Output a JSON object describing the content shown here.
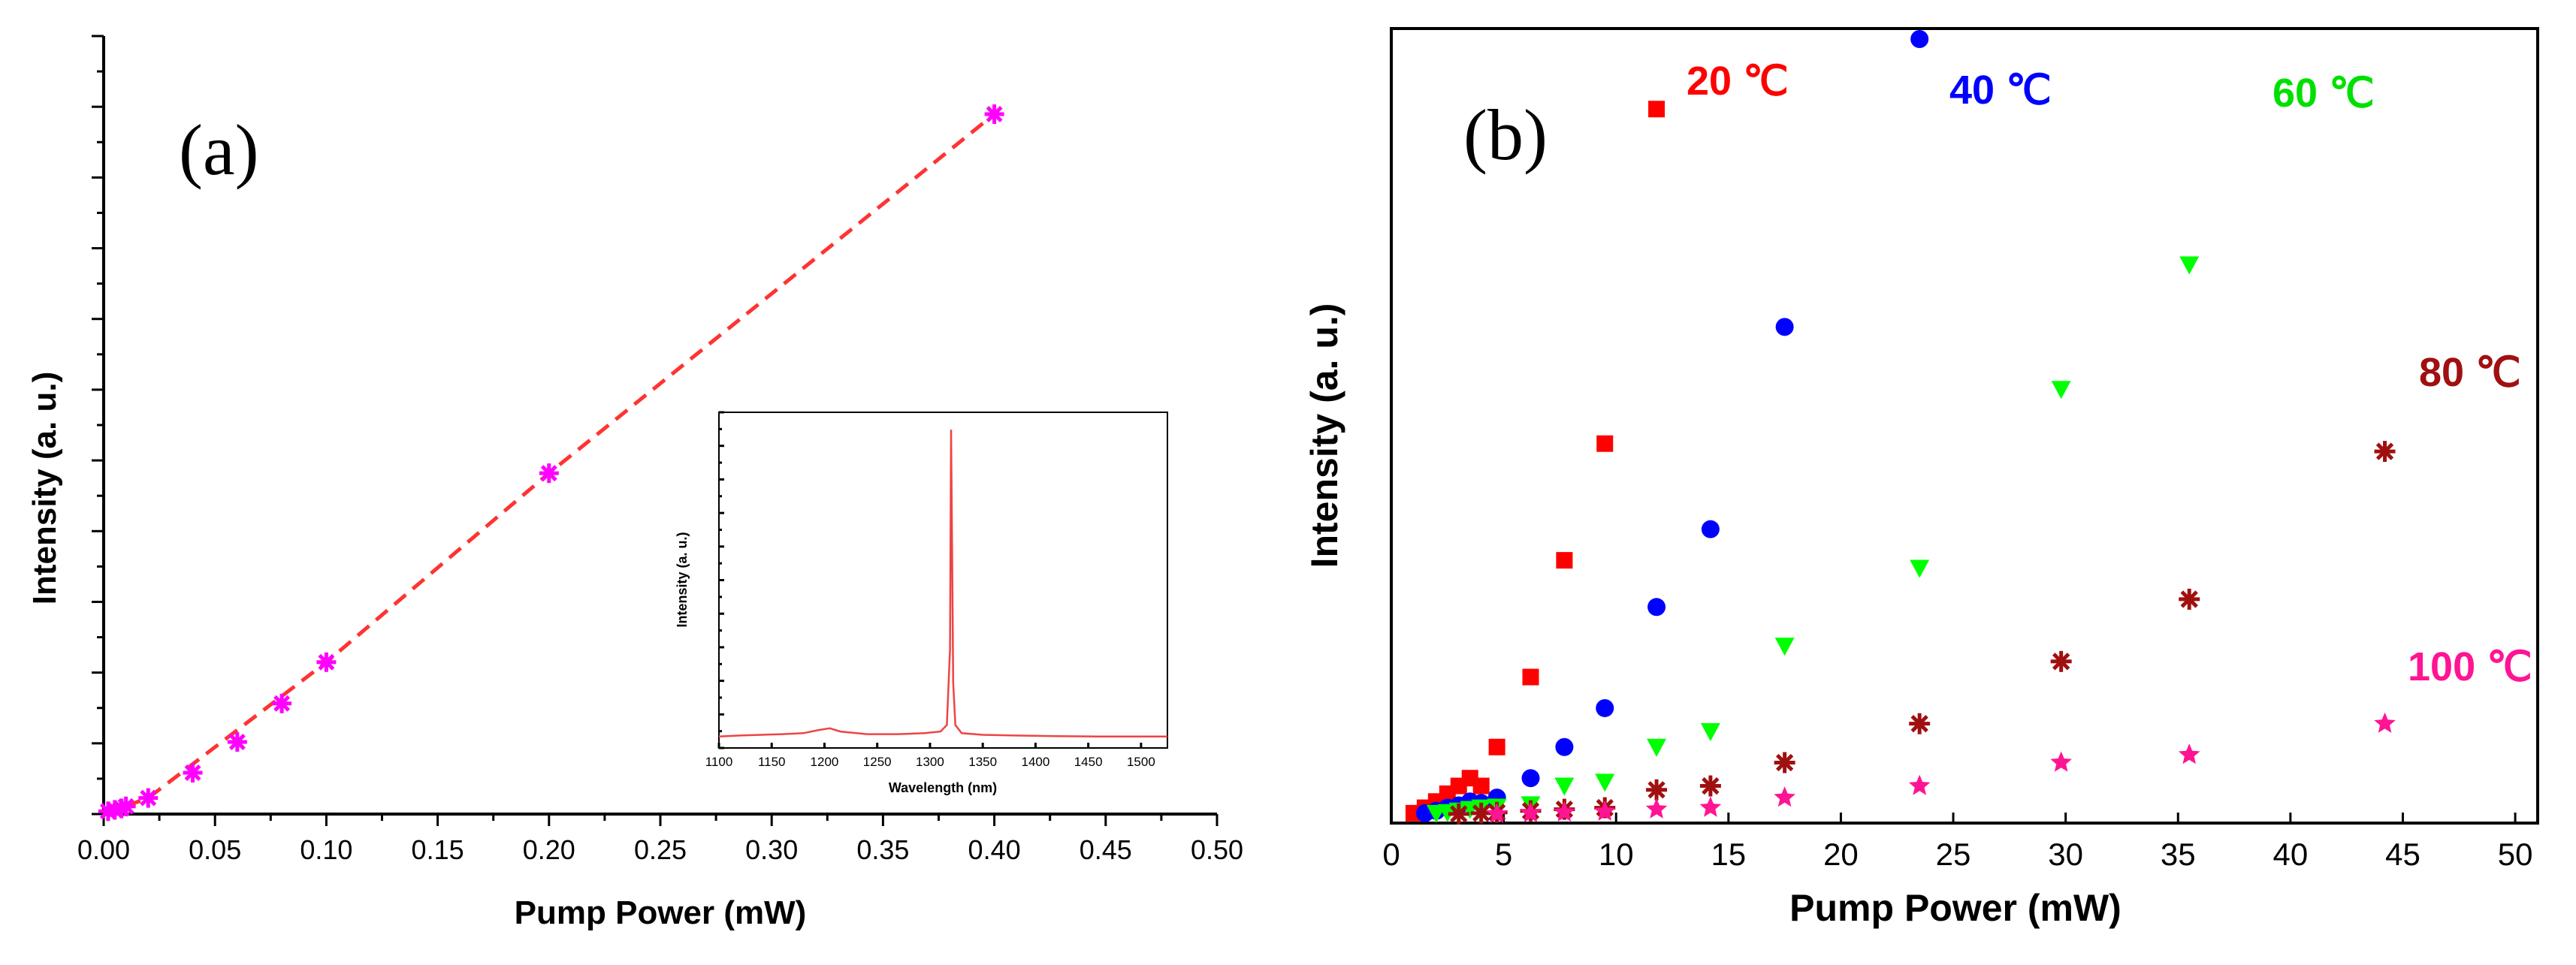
{
  "chart_data": [
    {
      "type": "scatter",
      "panel_label": "(a)",
      "title": "",
      "xlabel": "Pump Power (mW)",
      "ylabel": "Intensity (a. u.)",
      "xlim": [
        0,
        0.5
      ],
      "ylim": [
        0,
        1
      ],
      "x_ticks": [
        "0.00",
        "0.05",
        "0.10",
        "0.15",
        "0.20",
        "0.25",
        "0.30",
        "0.35",
        "0.40",
        "0.45",
        "0.50"
      ],
      "y_tick_labels_shown": false,
      "series": [
        {
          "name": "Intensity",
          "marker": "asterisk",
          "color": "#ff00ff",
          "x": [
            0.002,
            0.005,
            0.008,
            0.01,
            0.02,
            0.04,
            0.06,
            0.08,
            0.1,
            0.2,
            0.4
          ],
          "y": [
            0.004,
            0.006,
            0.008,
            0.011,
            0.023,
            0.059,
            0.103,
            0.158,
            0.217,
            0.487,
            1.0
          ]
        }
      ],
      "fit_line": {
        "style": "dashed",
        "color": "#ff3333",
        "x": [
          0.0,
          0.02,
          0.1,
          0.2,
          0.4
        ],
        "y": [
          0.0,
          0.023,
          0.217,
          0.487,
          1.0
        ]
      },
      "inset": {
        "type": "line",
        "xlabel": "Wavelength (nm)",
        "ylabel": "Intensity (a. u.)",
        "xlim": [
          1100,
          1525
        ],
        "ylim": [
          0,
          1
        ],
        "x_ticks": [
          "1100",
          "1150",
          "1200",
          "1250",
          "1300",
          "1350",
          "1400",
          "1450",
          "1500"
        ],
        "color": "#ee4444",
        "x": [
          1100,
          1120,
          1140,
          1160,
          1180,
          1195,
          1205,
          1215,
          1240,
          1270,
          1295,
          1310,
          1316,
          1319,
          1320,
          1321,
          1322,
          1324,
          1330,
          1350,
          1380,
          1420,
          1460,
          1500,
          1525
        ],
        "y": [
          0.035,
          0.038,
          0.04,
          0.042,
          0.045,
          0.055,
          0.06,
          0.05,
          0.042,
          0.042,
          0.045,
          0.05,
          0.07,
          0.3,
          0.97,
          0.6,
          0.2,
          0.07,
          0.045,
          0.04,
          0.038,
          0.036,
          0.035,
          0.035,
          0.035
        ]
      }
    },
    {
      "type": "scatter",
      "panel_label": "(b)",
      "title": "",
      "xlabel": "Pump Power (mW)",
      "ylabel": "Intensity (a. u.)",
      "xlim": [
        0,
        51
      ],
      "ylim": [
        0,
        1
      ],
      "x_ticks": [
        "0",
        "5",
        "10",
        "15",
        "20",
        "25",
        "30",
        "35",
        "40",
        "45",
        "50"
      ],
      "y_tick_labels_shown": false,
      "series": [
        {
          "name": "20 ℃",
          "marker": "square",
          "color": "#ff0000",
          "x": [
            1.0,
            1.5,
            2.0,
            2.5,
            3.0,
            3.5,
            4.0,
            4.7,
            6.2,
            7.7,
            9.5,
            11.8
          ],
          "y": [
            0.005,
            0.012,
            0.02,
            0.03,
            0.04,
            0.05,
            0.04,
            0.09,
            0.18,
            0.33,
            0.48,
            0.91
          ]
        },
        {
          "name": "40 ℃",
          "marker": "circle",
          "color": "#0000ff",
          "x": [
            1.5,
            2.0,
            2.5,
            3.0,
            3.5,
            4.0,
            4.7,
            6.2,
            7.7,
            9.5,
            11.8,
            14.2,
            17.5,
            23.5
          ],
          "y": [
            0.005,
            0.008,
            0.012,
            0.015,
            0.02,
            0.018,
            0.025,
            0.05,
            0.09,
            0.14,
            0.27,
            0.37,
            0.63,
            1.0
          ]
        },
        {
          "name": "60 ℃",
          "marker": "triangle-down",
          "color": "#00ff00",
          "x": [
            2.0,
            2.5,
            3.0,
            3.5,
            4.0,
            4.7,
            6.2,
            7.7,
            9.5,
            11.8,
            14.2,
            17.5,
            23.5,
            29.8,
            35.5
          ],
          "y": [
            0.005,
            0.006,
            0.008,
            0.01,
            0.012,
            0.013,
            0.016,
            0.04,
            0.045,
            0.09,
            0.11,
            0.22,
            0.32,
            0.55,
            0.71
          ]
        },
        {
          "name": "80 ℃",
          "marker": "asterisk",
          "color": "#a01010",
          "x": [
            3.0,
            4.0,
            4.7,
            6.2,
            7.7,
            9.5,
            11.8,
            14.2,
            17.5,
            23.5,
            29.8,
            35.5,
            44.2
          ],
          "y": [
            0.004,
            0.005,
            0.006,
            0.008,
            0.01,
            0.012,
            0.035,
            0.04,
            0.07,
            0.12,
            0.2,
            0.28,
            0.47
          ]
        },
        {
          "name": "100 ℃",
          "marker": "star",
          "color": "#ff1493",
          "x": [
            4.7,
            6.2,
            7.7,
            9.5,
            11.8,
            14.2,
            17.5,
            23.5,
            29.8,
            35.5,
            44.2
          ],
          "y": [
            0.004,
            0.005,
            0.006,
            0.007,
            0.01,
            0.012,
            0.025,
            0.04,
            0.07,
            0.08,
            0.12
          ]
        }
      ],
      "legend_labels": [
        "20 ℃",
        "40 ℃",
        "60 ℃",
        "80 ℃",
        "100 ℃"
      ]
    }
  ]
}
